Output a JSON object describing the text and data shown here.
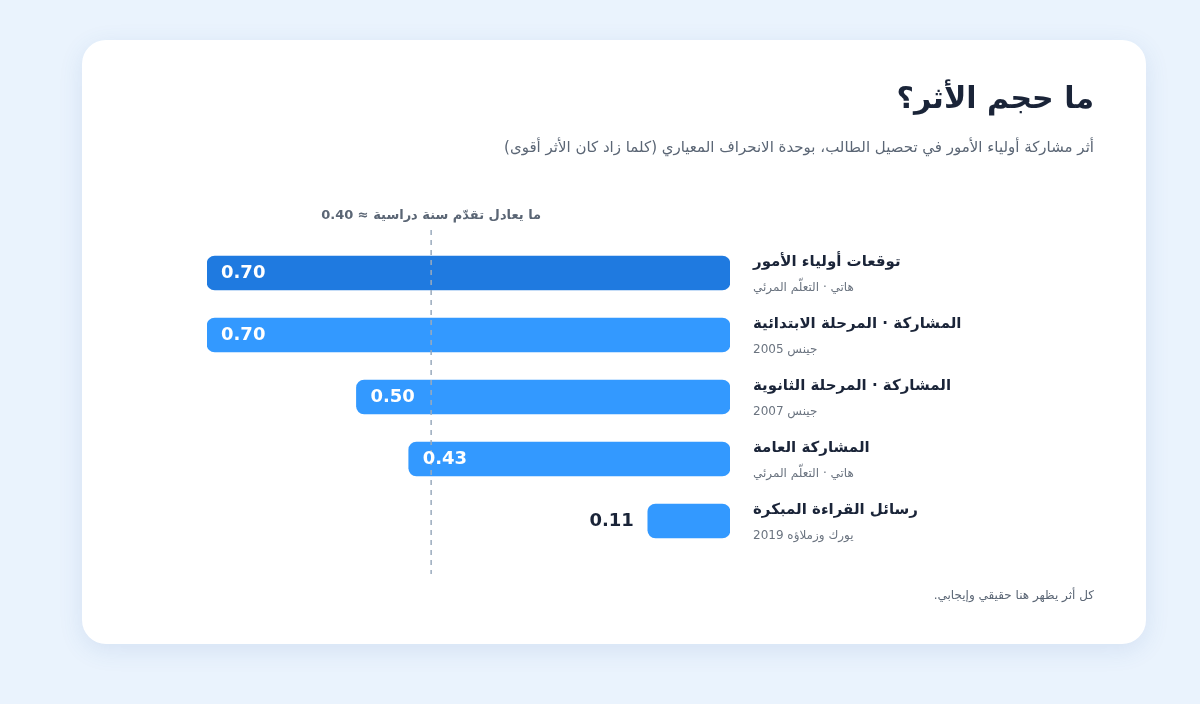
{
  "chart_data": {
    "type": "bar",
    "orientation": "horizontal",
    "title": "ما حجم الأثر؟",
    "subtitle": "أثر مشاركة أولياء الأمور في تحصيل الطالب، بوحدة الانحراف المعياري (كلما زاد كان الأثر أقوى)",
    "categories": [
      "توقعات أولياء الأمور",
      "المشاركة · المرحلة الابتدائية",
      "المشاركة · المرحلة الثانوية",
      "المشاركة العامة",
      "رسائل القراءة المبكرة"
    ],
    "values": [
      0.7,
      0.7,
      0.5,
      0.43,
      0.11
    ],
    "value_labels": [
      "0.70",
      "0.70",
      "0.50",
      "0.43",
      "0.11"
    ],
    "colors": [
      "#1f7ae0",
      "#3399ff",
      "#3399ff",
      "#3399ff",
      "#3399ff"
    ],
    "xlim": [
      0.7,
      0
    ],
    "tick_labels": "y",
    "grid": false,
    "legend": false,
    "ref_lines": [
      {
        "axis": "x",
        "value": 0.4,
        "label": "0.40 ≈ ما يعادل تقدّم سنة دراسية",
        "color": "#9aabbd",
        "line_style": "dashed"
      }
    ],
    "annotations": [
      "هاتي · التعلّم المرئي",
      "جينس 2005",
      "جينس 2007",
      "هاتي · التعلّم المرئي",
      "يورك وزملاؤه 2019",
      "كل أثر يظهر هنا حقيقي وإيجابي."
    ]
  }
}
